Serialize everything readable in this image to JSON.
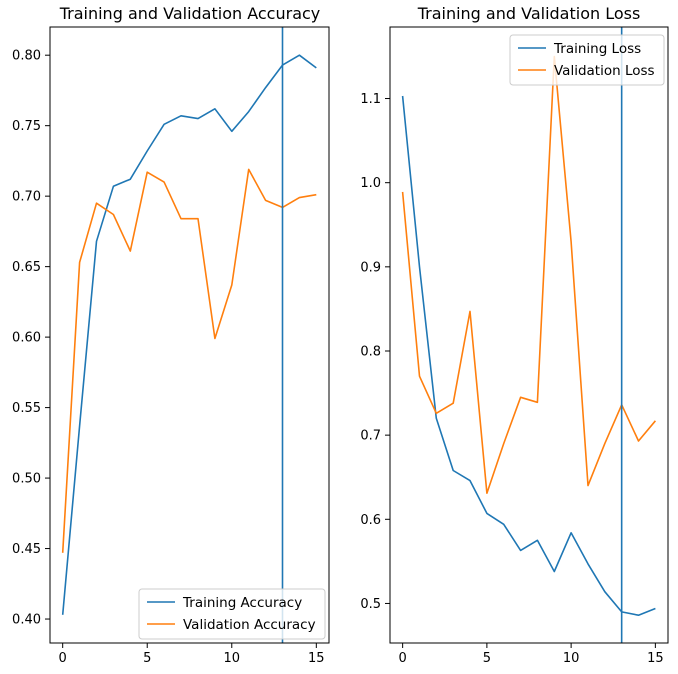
{
  "colors": {
    "training": "#1f77b4",
    "validation": "#ff7f0e",
    "axes": "#000000",
    "background": "#ffffff",
    "legend_border": "#cccccc"
  },
  "chart_data": [
    {
      "type": "line",
      "title": "Training and Validation Accuracy",
      "xlabel": "",
      "ylabel": "",
      "x": [
        0,
        1,
        2,
        3,
        4,
        5,
        6,
        7,
        8,
        9,
        10,
        11,
        12,
        13,
        14,
        15
      ],
      "series": [
        {
          "name": "Training Accuracy",
          "color": "#1f77b4",
          "values": [
            0.403,
            0.537,
            0.668,
            0.707,
            0.712,
            0.732,
            0.751,
            0.757,
            0.755,
            0.762,
            0.746,
            0.76,
            0.777,
            0.793,
            0.8,
            0.791
          ]
        },
        {
          "name": "Validation Accuracy",
          "color": "#ff7f0e",
          "values": [
            0.447,
            0.653,
            0.695,
            0.687,
            0.661,
            0.717,
            0.71,
            0.684,
            0.684,
            0.599,
            0.637,
            0.719,
            0.697,
            0.692,
            0.699,
            0.701
          ]
        }
      ],
      "xlim": [
        -0.75,
        15.75
      ],
      "ylim": [
        0.383,
        0.82
      ],
      "xticks": [
        0,
        5,
        10,
        15
      ],
      "yticks": [
        0.4,
        0.45,
        0.5,
        0.55,
        0.6,
        0.65,
        0.7,
        0.75,
        0.8
      ],
      "ytick_labels": [
        "0.40",
        "0.45",
        "0.50",
        "0.55",
        "0.60",
        "0.65",
        "0.70",
        "0.75",
        "0.80"
      ],
      "vline_x": 13,
      "legend_position": "lower right",
      "grid": false
    },
    {
      "type": "line",
      "title": "Training and Validation Loss",
      "xlabel": "",
      "ylabel": "",
      "x": [
        0,
        1,
        2,
        3,
        4,
        5,
        6,
        7,
        8,
        9,
        10,
        11,
        12,
        13,
        14,
        15
      ],
      "series": [
        {
          "name": "Training Loss",
          "color": "#1f77b4",
          "values": [
            1.103,
            0.9,
            0.72,
            0.658,
            0.646,
            0.607,
            0.594,
            0.563,
            0.575,
            0.538,
            0.584,
            0.547,
            0.514,
            0.49,
            0.486,
            0.494
          ]
        },
        {
          "name": "Validation Loss",
          "color": "#ff7f0e",
          "values": [
            0.989,
            0.77,
            0.726,
            0.738,
            0.847,
            0.631,
            0.69,
            0.745,
            0.739,
            1.15,
            0.93,
            0.64,
            0.69,
            0.736,
            0.693,
            0.717
          ]
        }
      ],
      "xlim": [
        -0.75,
        15.75
      ],
      "ylim": [
        0.453,
        1.185
      ],
      "xticks": [
        0,
        5,
        10,
        15
      ],
      "yticks": [
        0.5,
        0.6,
        0.7,
        0.8,
        0.9,
        1.0,
        1.1
      ],
      "ytick_labels": [
        "0.5",
        "0.6",
        "0.7",
        "0.8",
        "0.9",
        "1.0",
        "1.1"
      ],
      "vline_x": 13,
      "legend_position": "upper right",
      "grid": false
    }
  ]
}
